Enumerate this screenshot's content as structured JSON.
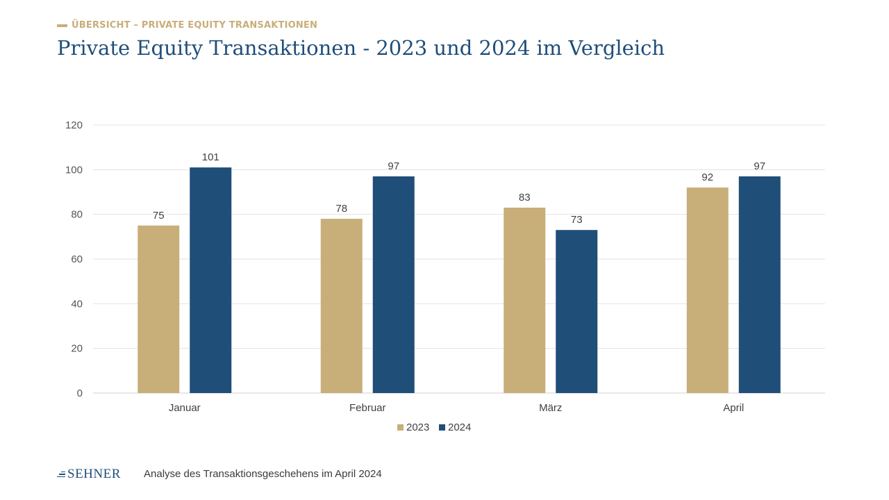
{
  "header": {
    "kicker": "ÜBERSICHT – PRIVATE EQUITY TRANSAKTIONEN",
    "title": "Private Equity Transaktionen - 2023 und 2024 im Vergleich"
  },
  "footer": {
    "logo": "SEHNER",
    "text": "Analyse des Transaktionsgeschehens im April 2024"
  },
  "colors": {
    "accent_gold": "#c8ae79",
    "accent_blue": "#1f4e79"
  },
  "chart_data": {
    "type": "bar",
    "categories": [
      "Januar",
      "Februar",
      "März",
      "April"
    ],
    "series": [
      {
        "name": "2023",
        "values": [
          75,
          78,
          83,
          92
        ],
        "color": "#c8ae79"
      },
      {
        "name": "2024",
        "values": [
          101,
          97,
          73,
          97
        ],
        "color": "#1f4e79"
      }
    ],
    "ylim": [
      0,
      120
    ],
    "yticks": [
      0,
      20,
      40,
      60,
      80,
      100,
      120
    ],
    "grid": true,
    "legend": "bottom-center",
    "data_labels": true
  }
}
